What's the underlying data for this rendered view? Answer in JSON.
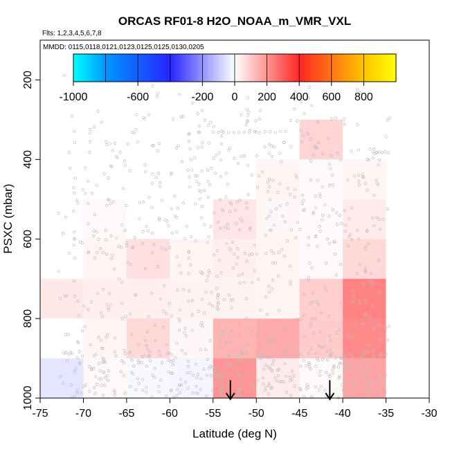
{
  "chart_data": {
    "type": "heatmap",
    "title": "ORCAS RF01-8 H2O_NOAA_m_VMR_VXL",
    "subtitle_flights": "Flts: 1,2,3,4,5,6,7,8",
    "subtitle_dates": "MMDD: 0115,0118,0121,0123,0125,0125,0130,0205",
    "xlabel": "Latitude (deg N)",
    "ylabel": "PSXC (mbar)",
    "xlim": [
      -75,
      -30
    ],
    "ylim": [
      1000,
      100
    ],
    "x_ticks": [
      -75,
      -70,
      -65,
      -60,
      -55,
      -50,
      -45,
      -40,
      -35,
      -30
    ],
    "x_tick_labels": [
      "-75",
      "-70",
      "-65",
      "-60",
      "-55",
      "-50",
      "-45",
      "-40",
      "-35",
      "-30"
    ],
    "y_ticks": [
      200,
      400,
      600,
      800,
      1000
    ],
    "y_tick_labels": [
      "200",
      "400",
      "600",
      "800",
      "1000"
    ],
    "colorbar": {
      "range": [
        -1000,
        1000
      ],
      "tick_values": [
        -1000,
        -600,
        -200,
        0,
        200,
        400,
        600,
        800
      ],
      "tick_labels": [
        "-1000",
        "-600",
        "-200",
        "0",
        "200",
        "400",
        "600",
        "800"
      ],
      "separators": [
        -800,
        -600,
        -400,
        -200,
        0,
        200,
        400,
        600,
        800
      ]
    },
    "cells": [
      {
        "lat": [
          -75,
          -70
        ],
        "p": [
          900,
          1000
        ],
        "value": -80
      },
      {
        "lat": [
          -70,
          -65
        ],
        "p": [
          900,
          1000
        ],
        "value": 20
      },
      {
        "lat": [
          -65,
          -60
        ],
        "p": [
          900,
          1000
        ],
        "value": -20
      },
      {
        "lat": [
          -60,
          -55
        ],
        "p": [
          900,
          1000
        ],
        "value": -30
      },
      {
        "lat": [
          -55,
          -50
        ],
        "p": [
          900,
          1000
        ],
        "value": 330
      },
      {
        "lat": [
          -50,
          -45
        ],
        "p": [
          900,
          1000
        ],
        "value": 60
      },
      {
        "lat": [
          -45,
          -40
        ],
        "p": [
          900,
          1000
        ],
        "value": 15
      },
      {
        "lat": [
          -40,
          -35
        ],
        "p": [
          900,
          1000
        ],
        "value": 280
      },
      {
        "lat": [
          -75,
          -70
        ],
        "p": [
          800,
          900
        ],
        "value": 0
      },
      {
        "lat": [
          -70,
          -65
        ],
        "p": [
          800,
          900
        ],
        "value": 30
      },
      {
        "lat": [
          -65,
          -60
        ],
        "p": [
          800,
          900
        ],
        "value": 120
      },
      {
        "lat": [
          -60,
          -55
        ],
        "p": [
          800,
          900
        ],
        "value": 25
      },
      {
        "lat": [
          -55,
          -50
        ],
        "p": [
          800,
          900
        ],
        "value": 230
      },
      {
        "lat": [
          -50,
          -45
        ],
        "p": [
          800,
          900
        ],
        "value": 260
      },
      {
        "lat": [
          -45,
          -40
        ],
        "p": [
          800,
          900
        ],
        "value": 160
      },
      {
        "lat": [
          -40,
          -35
        ],
        "p": [
          800,
          900
        ],
        "value": 360
      },
      {
        "lat": [
          -75,
          -70
        ],
        "p": [
          700,
          800
        ],
        "value": 70
      },
      {
        "lat": [
          -70,
          -65
        ],
        "p": [
          700,
          800
        ],
        "value": 50
      },
      {
        "lat": [
          -65,
          -60
        ],
        "p": [
          700,
          800
        ],
        "value": 50
      },
      {
        "lat": [
          -60,
          -55
        ],
        "p": [
          700,
          800
        ],
        "value": 40
      },
      {
        "lat": [
          -55,
          -50
        ],
        "p": [
          700,
          800
        ],
        "value": 40
      },
      {
        "lat": [
          -50,
          -45
        ],
        "p": [
          700,
          800
        ],
        "value": 35
      },
      {
        "lat": [
          -45,
          -40
        ],
        "p": [
          700,
          800
        ],
        "value": 150
      },
      {
        "lat": [
          -40,
          -35
        ],
        "p": [
          700,
          800
        ],
        "value": 380
      },
      {
        "lat": [
          -70,
          -65
        ],
        "p": [
          600,
          700
        ],
        "value": 30
      },
      {
        "lat": [
          -65,
          -60
        ],
        "p": [
          600,
          700
        ],
        "value": 100
      },
      {
        "lat": [
          -60,
          -55
        ],
        "p": [
          600,
          700
        ],
        "value": 30
      },
      {
        "lat": [
          -55,
          -50
        ],
        "p": [
          600,
          700
        ],
        "value": 50
      },
      {
        "lat": [
          -50,
          -45
        ],
        "p": [
          600,
          700
        ],
        "value": 30
      },
      {
        "lat": [
          -45,
          -40
        ],
        "p": [
          600,
          700
        ],
        "value": 20
      },
      {
        "lat": [
          -40,
          -35
        ],
        "p": [
          600,
          700
        ],
        "value": 120
      },
      {
        "lat": [
          -70,
          -65
        ],
        "p": [
          500,
          600
        ],
        "value": 20
      },
      {
        "lat": [
          -55,
          -50
        ],
        "p": [
          500,
          600
        ],
        "value": 80
      },
      {
        "lat": [
          -50,
          -45
        ],
        "p": [
          500,
          600
        ],
        "value": 25
      },
      {
        "lat": [
          -45,
          -40
        ],
        "p": [
          500,
          600
        ],
        "value": 15
      },
      {
        "lat": [
          -40,
          -35
        ],
        "p": [
          500,
          600
        ],
        "value": 60
      },
      {
        "lat": [
          -50,
          -45
        ],
        "p": [
          400,
          500
        ],
        "value": 30
      },
      {
        "lat": [
          -45,
          -40
        ],
        "p": [
          400,
          500
        ],
        "value": 15
      },
      {
        "lat": [
          -40,
          -35
        ],
        "p": [
          400,
          500
        ],
        "value": 30
      },
      {
        "lat": [
          -45,
          -40
        ],
        "p": [
          300,
          400
        ],
        "value": 130
      }
    ],
    "arrows": [
      {
        "lat": -53,
        "p_top": 955,
        "p_tip": 1003
      },
      {
        "lat": -41.5,
        "p_top": 955,
        "p_tip": 1003
      }
    ],
    "observation_points": {
      "marker": "open circle",
      "color": "#bdbdbd"
    }
  }
}
